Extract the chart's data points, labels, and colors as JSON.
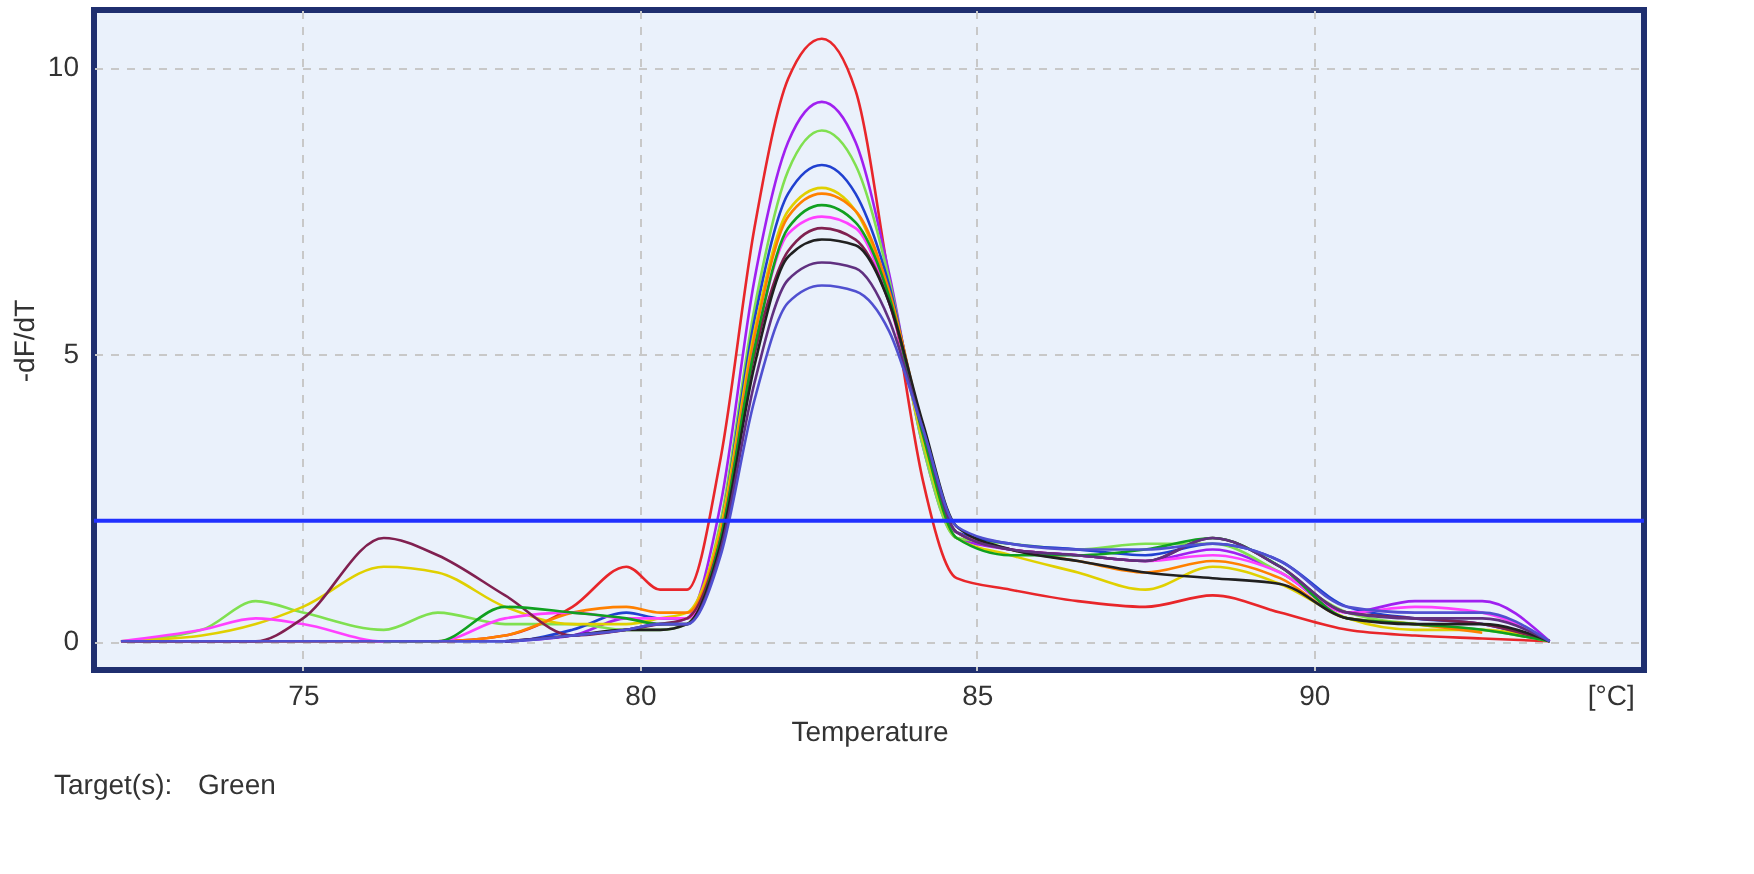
{
  "chart_data": {
    "type": "line",
    "xlabel": "Temperature",
    "ylabel": "-dF/dT",
    "x": [
      72.3,
      73.5,
      74.3,
      75,
      76.2,
      77,
      78,
      79,
      79.8,
      80.3,
      80.7,
      81.2,
      81.7,
      82.2,
      82.7,
      83.2,
      83.7,
      84.2,
      84.7,
      85.5,
      86.5,
      87.5,
      88.5,
      89.5,
      90.5,
      91.5,
      92.5,
      93.5
    ],
    "xlim": [
      71.9,
      94.9
    ],
    "xticks": [
      75,
      80,
      85,
      90,
      {
        "value": 94.4,
        "label": "[°C]"
      }
    ],
    "ylim": [
      -0.5,
      11
    ],
    "yticks": [
      0,
      5,
      10
    ],
    "grid": true,
    "line_style": "solid",
    "marker": "none",
    "ref_lines": [
      {
        "axis": "y",
        "value": 2.1,
        "color": "#2030ff"
      }
    ],
    "annotations": [
      "Target(s):",
      "Green"
    ],
    "series": [
      {
        "color": "#e8262a",
        "values": [
          0,
          0,
          0,
          0,
          0,
          0,
          0.1,
          0.6,
          1.3,
          0.9,
          0.9,
          3.2,
          7.2,
          9.8,
          10.5,
          9.6,
          6.3,
          2.8,
          1.1,
          0.9,
          0.7,
          0.6,
          0.8,
          0.5,
          0.2,
          0.1,
          0.05,
          0
        ]
      },
      {
        "color": "#a020f0",
        "values": [
          null,
          null,
          null,
          null,
          null,
          null,
          0,
          0.1,
          0.4,
          0.3,
          0.4,
          2.4,
          6.3,
          8.7,
          9.4,
          8.7,
          6.4,
          3.4,
          1.8,
          1.6,
          1.5,
          1.4,
          1.6,
          1.2,
          0.5,
          0.7,
          0.7,
          0
        ]
      },
      {
        "color": "#80e050",
        "values": [
          0,
          0.2,
          0.7,
          0.5,
          0.2,
          0.5,
          0.3,
          0.3,
          0.2,
          0.2,
          0.3,
          2.1,
          5.8,
          8.2,
          8.9,
          8.3,
          6.3,
          3.4,
          1.8,
          1.7,
          1.6,
          1.7,
          1.7,
          1.2,
          0.5,
          0.3,
          0.2,
          0
        ]
      },
      {
        "color": "#2040d0",
        "values": [
          0,
          0,
          0,
          0,
          0,
          0,
          0,
          0.2,
          0.5,
          0.4,
          0.4,
          2,
          5.6,
          7.8,
          8.3,
          7.8,
          6.2,
          3.6,
          1.9,
          1.7,
          1.6,
          1.5,
          1.7,
          1.4,
          0.6,
          0.4,
          0.3,
          0
        ]
      },
      {
        "color": "#e0d000",
        "values": [
          0,
          0.1,
          0.3,
          0.6,
          1.3,
          1.2,
          0.6,
          0.3,
          0.3,
          0.4,
          0.5,
          2,
          5.4,
          7.5,
          7.9,
          7.5,
          6,
          3.5,
          1.8,
          1.5,
          1.2,
          0.9,
          1.3,
          1.0,
          0.4,
          0.2,
          0.2,
          0
        ]
      },
      {
        "color": "#ff8000",
        "values": [
          0,
          0,
          0,
          0,
          0,
          0,
          0.1,
          0.5,
          0.6,
          0.5,
          0.5,
          1.9,
          5.3,
          7.4,
          7.8,
          7.5,
          6.1,
          3.7,
          1.9,
          1.6,
          1.4,
          1.2,
          1.4,
          1.1,
          0.4,
          0.3,
          0.15,
          null
        ]
      },
      {
        "color": "#ff40ff",
        "values": [
          0,
          0.2,
          0.4,
          0.3,
          0,
          0,
          0.4,
          0.5,
          0.4,
          0.4,
          0.4,
          1.8,
          5.1,
          7.1,
          7.4,
          7.2,
          5.9,
          3.6,
          1.9,
          1.6,
          1.5,
          1.4,
          1.5,
          1.2,
          0.5,
          0.6,
          0.5,
          0
        ]
      },
      {
        "color": "#802050",
        "values": [
          0,
          0,
          0,
          0.4,
          1.8,
          1.5,
          0.8,
          0.1,
          0.2,
          0.3,
          0.4,
          1.8,
          5,
          6.8,
          7.2,
          7,
          5.9,
          3.7,
          1.9,
          1.6,
          1.5,
          1.4,
          1.8,
          1.3,
          0.5,
          0.4,
          0.3,
          0
        ]
      },
      {
        "color": "#10a020",
        "values": [
          null,
          null,
          null,
          null,
          0,
          0,
          0.6,
          0.5,
          0.4,
          0.3,
          0.3,
          1.8,
          5.1,
          7.2,
          7.6,
          7.3,
          6,
          3.6,
          1.8,
          1.5,
          1.5,
          1.6,
          1.8,
          1.3,
          0.4,
          0.3,
          0.2,
          0
        ]
      },
      {
        "color": "#202020",
        "values": [
          null,
          null,
          null,
          null,
          null,
          null,
          0,
          0.1,
          0.2,
          0.2,
          0.3,
          1.7,
          4.8,
          6.7,
          7.0,
          6.9,
          5.9,
          3.8,
          2,
          1.6,
          1.4,
          1.2,
          1.1,
          1.0,
          0.4,
          0.3,
          0.3,
          0
        ]
      },
      {
        "color": "#603080",
        "values": [
          null,
          null,
          null,
          null,
          null,
          null,
          0,
          0.1,
          0.2,
          0.3,
          0.3,
          1.6,
          4.5,
          6.3,
          6.6,
          6.5,
          5.6,
          3.7,
          1.9,
          1.6,
          1.5,
          1.4,
          1.8,
          1.3,
          0.5,
          0.4,
          0.4,
          0
        ]
      },
      {
        "color": "#5050d0",
        "values": [
          0,
          0,
          0,
          0,
          0,
          0,
          0,
          0.1,
          0.2,
          0.3,
          0.3,
          1.5,
          4.2,
          5.9,
          6.2,
          6.1,
          5.4,
          3.7,
          2,
          1.7,
          1.6,
          1.6,
          1.7,
          1.4,
          0.6,
          0.5,
          0.5,
          0
        ]
      }
    ]
  }
}
